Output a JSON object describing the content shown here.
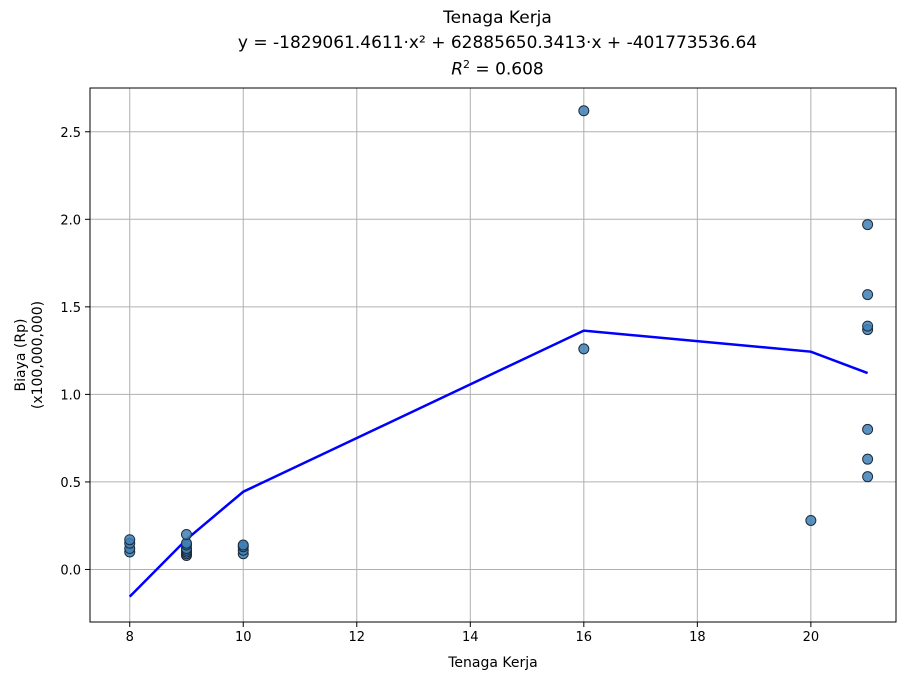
{
  "chart_data": {
    "type": "scatter",
    "title": "Tenaga Kerja",
    "equation": "y = -1829061.4611·x² + 62885650.3413·x + -401773536.64",
    "r2_label": "R² = 0.608",
    "r2_symbol": "R",
    "r2_exp": "2",
    "r2_value": " = 0.608",
    "xlabel": "Tenaga Kerja",
    "ylabel_line1": "Biaya (Rp)",
    "ylabel_line2": "(x100,000,000)",
    "xlim": [
      7.3,
      21.5
    ],
    "ylim": [
      -0.3,
      2.75
    ],
    "xticks": [
      8,
      10,
      12,
      14,
      16,
      18,
      20
    ],
    "xtick_labels": [
      "8",
      "10",
      "12",
      "14",
      "16",
      "18",
      "20"
    ],
    "yticks": [
      0.0,
      0.5,
      1.0,
      1.5,
      2.0,
      2.5
    ],
    "ytick_labels": [
      "0.0",
      "0.5",
      "1.0",
      "1.5",
      "2.0",
      "2.5"
    ],
    "grid": true,
    "points": [
      {
        "x": 8,
        "y": 0.1
      },
      {
        "x": 8,
        "y": 0.12
      },
      {
        "x": 8,
        "y": 0.15
      },
      {
        "x": 8,
        "y": 0.17
      },
      {
        "x": 9,
        "y": 0.08
      },
      {
        "x": 9,
        "y": 0.09
      },
      {
        "x": 9,
        "y": 0.1
      },
      {
        "x": 9,
        "y": 0.11
      },
      {
        "x": 9,
        "y": 0.12
      },
      {
        "x": 9,
        "y": 0.14
      },
      {
        "x": 9,
        "y": 0.15
      },
      {
        "x": 9,
        "y": 0.2
      },
      {
        "x": 10,
        "y": 0.09
      },
      {
        "x": 10,
        "y": 0.11
      },
      {
        "x": 10,
        "y": 0.13
      },
      {
        "x": 10,
        "y": 0.14
      },
      {
        "x": 16,
        "y": 1.26
      },
      {
        "x": 16,
        "y": 2.62
      },
      {
        "x": 20,
        "y": 0.28
      },
      {
        "x": 21,
        "y": 0.53
      },
      {
        "x": 21,
        "y": 0.63
      },
      {
        "x": 21,
        "y": 0.8
      },
      {
        "x": 21,
        "y": 1.37
      },
      {
        "x": 21,
        "y": 1.39
      },
      {
        "x": 21,
        "y": 1.57
      },
      {
        "x": 21,
        "y": 1.97
      }
    ],
    "fit_curve": {
      "x": [
        8,
        9,
        10,
        16,
        20,
        21
      ],
      "y": [
        -0.155,
        0.172,
        0.444,
        1.364,
        1.244,
        1.122
      ]
    },
    "colors": {
      "points": "#3f7fb5",
      "point_edge": "#1c2c3c",
      "fit_line": "#0000ff",
      "grid": "#b0b0b0"
    }
  }
}
